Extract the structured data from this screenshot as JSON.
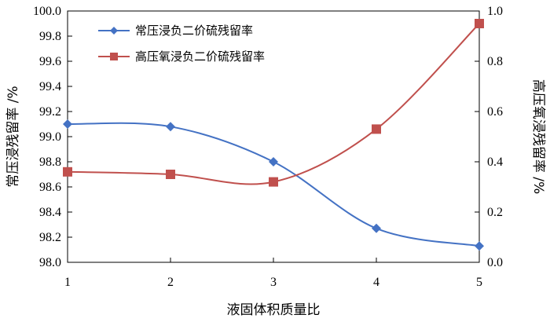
{
  "chart_data": {
    "type": "line",
    "x": [
      1,
      2,
      3,
      4,
      5
    ],
    "xlabel": "液固体积质量比",
    "x_ticks": [
      "1",
      "2",
      "3",
      "4",
      "5"
    ],
    "ylabel_left": "常压浸残留率 /%",
    "ylabel_right": "高压氧浸残留率 /%",
    "ylim_left": [
      98.0,
      100.0
    ],
    "ylim_right": [
      0.0,
      1.0
    ],
    "y_ticks_left": [
      "98.0",
      "98.2",
      "98.4",
      "98.6",
      "98.8",
      "99.0",
      "99.2",
      "99.4",
      "99.6",
      "99.8",
      "100.0"
    ],
    "y_ticks_right": [
      "0.0",
      "0.2",
      "0.4",
      "0.6",
      "0.8",
      "1.0"
    ],
    "grid": false,
    "legend_position": "top-left",
    "series": [
      {
        "name": "常压浸负二价硫残留率",
        "axis": "left",
        "marker": "diamond",
        "color": "#4472C4",
        "values": [
          99.1,
          99.08,
          98.8,
          98.27,
          98.13
        ]
      },
      {
        "name": "高压氧浸负二价硫残留率",
        "axis": "right",
        "marker": "square",
        "color": "#C0504D",
        "values": [
          0.36,
          0.35,
          0.32,
          0.53,
          0.95
        ]
      }
    ]
  }
}
